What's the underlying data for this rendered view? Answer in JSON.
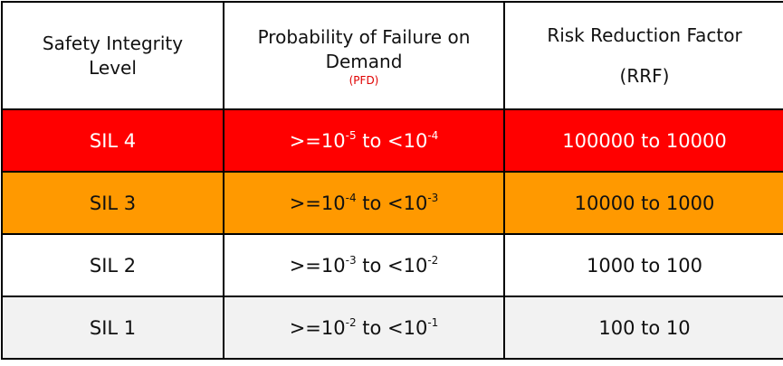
{
  "table": {
    "header": [
      {
        "text": "Safety Integrity Level"
      },
      {
        "text": "Probability of Failure on Demand",
        "note": "(PFD)"
      },
      {
        "text": "Risk Reduction Factor",
        "note": "(RRF)"
      }
    ],
    "rows": [
      {
        "level": "SIL 4",
        "pfd": {
          "base1": ">=10",
          "exp1": "-5",
          "mid": " to <10",
          "exp2": "-4"
        },
        "rrf": "100000 to 10000"
      },
      {
        "level": "SIL 3",
        "pfd": {
          "base1": ">=10",
          "exp1": "-4",
          "mid": " to <10",
          "exp2": "-3"
        },
        "rrf": "10000 to 1000"
      },
      {
        "level": "SIL 2",
        "pfd": {
          "base1": ">=10",
          "exp1": "-3",
          "mid": " to <10",
          "exp2": "-2"
        },
        "rrf": "1000 to 100"
      },
      {
        "level": "SIL 1",
        "pfd": {
          "base1": ">=10",
          "exp1": "-2",
          "mid": " to <10",
          "exp2": "-1"
        },
        "rrf": "100 to 10"
      }
    ]
  }
}
